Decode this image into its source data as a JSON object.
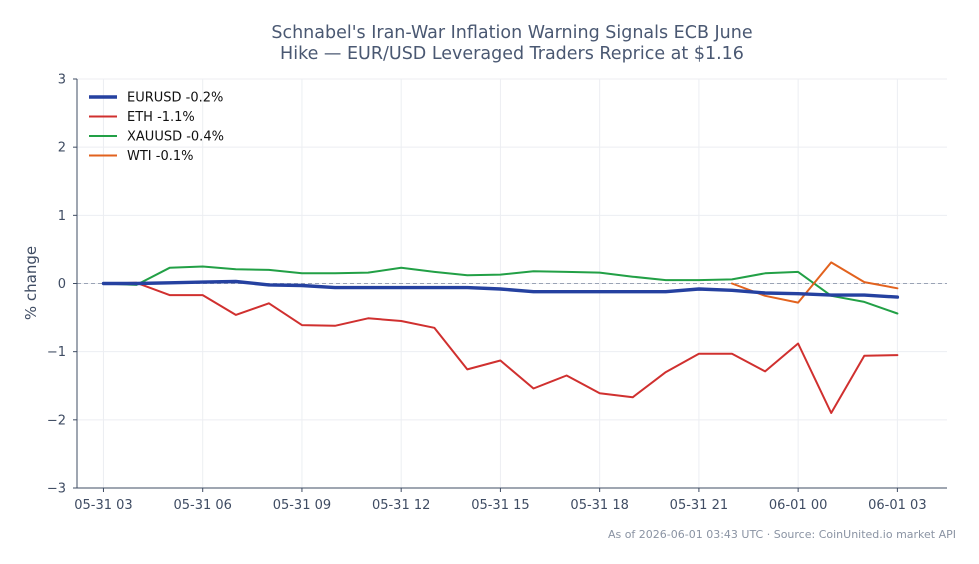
{
  "chart_data": {
    "type": "line",
    "title_lines": [
      "Schnabel's Iran-War Inflation Warning Signals ECB June",
      "Hike — EUR/USD Leveraged Traders Reprice at $1.16"
    ],
    "ylabel": "% change",
    "xlabel": "",
    "ylim": [
      -3,
      3
    ],
    "y_ticks": [
      -3,
      -2,
      -1,
      0,
      1,
      2,
      3
    ],
    "y_tick_labels": [
      "−3",
      "−2",
      "−1",
      "0",
      "1",
      "2",
      "3"
    ],
    "x_range": [
      -0.8,
      25.5
    ],
    "x_ticks": [
      0,
      3,
      6,
      9,
      12,
      15,
      18,
      21,
      24
    ],
    "x_tick_labels": [
      "05-31 03",
      "05-31 06",
      "05-31 09",
      "05-31 12",
      "05-31 15",
      "05-31 18",
      "05-31 21",
      "06-01 00",
      "06-01 03"
    ],
    "x_hours_note": "",
    "zero_line": true,
    "grid": true,
    "legend_position": "top-left",
    "series": [
      {
        "name": "EURUSD -0.2%",
        "color": "#2541a0",
        "width": 3.4,
        "x": [
          0,
          1,
          2,
          3,
          4,
          5,
          6,
          7,
          8,
          9,
          10,
          11,
          12,
          13,
          14,
          15,
          16,
          17,
          18,
          19,
          20,
          21,
          22,
          23,
          24
        ],
        "values": [
          0.0,
          0.0,
          0.01,
          0.02,
          0.03,
          -0.02,
          -0.03,
          -0.06,
          -0.06,
          -0.06,
          -0.06,
          -0.06,
          -0.08,
          -0.12,
          -0.12,
          -0.12,
          -0.12,
          -0.12,
          -0.08,
          -0.1,
          -0.14,
          -0.15,
          -0.17,
          -0.17,
          -0.2
        ]
      },
      {
        "name": "ETH -1.1%",
        "color": "#d0302f",
        "width": 2.0,
        "x": [
          0,
          1,
          2,
          3,
          4,
          5,
          6,
          7,
          8,
          9,
          10,
          11,
          12,
          13,
          14,
          15,
          16,
          17,
          18,
          19,
          20,
          21,
          22,
          23,
          24
        ],
        "values": [
          0.0,
          0.01,
          -0.17,
          -0.17,
          -0.46,
          -0.29,
          -0.61,
          -0.62,
          -0.51,
          -0.55,
          -0.65,
          -1.26,
          -1.13,
          -1.54,
          -1.35,
          -1.61,
          -1.67,
          -1.3,
          -1.03,
          -1.03,
          -1.29,
          -0.88,
          -1.9,
          -1.06,
          -1.05
        ]
      },
      {
        "name": "XAUUSD -0.4%",
        "color": "#22a046",
        "width": 2.0,
        "x": [
          0,
          1,
          2,
          3,
          4,
          5,
          6,
          7,
          8,
          9,
          10,
          11,
          12,
          13,
          14,
          15,
          16,
          17,
          18,
          19,
          20,
          21,
          22,
          23,
          24
        ],
        "values": [
          0.0,
          -0.02,
          0.23,
          0.25,
          0.21,
          0.2,
          0.15,
          0.15,
          0.16,
          0.23,
          0.17,
          0.12,
          0.13,
          0.18,
          0.17,
          0.16,
          0.1,
          0.05,
          0.05,
          0.06,
          0.15,
          0.17,
          -0.18,
          -0.27,
          -0.44
        ]
      },
      {
        "name": "WTI -0.1%",
        "color": "#e2621e",
        "width": 2.0,
        "x": [
          19,
          20,
          21,
          22,
          23,
          24
        ],
        "values": [
          0.0,
          -0.18,
          -0.28,
          0.31,
          0.02,
          -0.07
        ]
      }
    ]
  },
  "footer": "As of 2026-06-01 03:43 UTC · Source: CoinUnited.io market API"
}
